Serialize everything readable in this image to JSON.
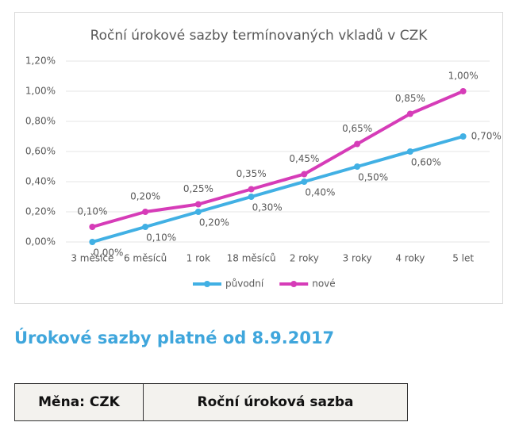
{
  "chart_data": {
    "type": "line",
    "title": "Roční úrokové sazby termínovaných vkladů v CZK",
    "categories": [
      "3 měsíce",
      "6 měsíců",
      "1 rok",
      "18 měsíců",
      "2 roky",
      "3 roky",
      "4 roky",
      "5 let"
    ],
    "series": [
      {
        "name": "původní",
        "color": "#41b0e4",
        "values": [
          0,
          0.1,
          0.2,
          0.3,
          0.4,
          0.5,
          0.6,
          0.7
        ],
        "value_labels": [
          "0,00%",
          "0,10%",
          "0,20%",
          "0,30%",
          "0,40%",
          "0,50%",
          "0,60%",
          "0,70%"
        ]
      },
      {
        "name": "nové",
        "color": "#d63cb8",
        "values": [
          0.1,
          0.2,
          0.25,
          0.35,
          0.45,
          0.65,
          0.85,
          1.0
        ],
        "value_labels": [
          "0,10%",
          "0,20%",
          "0,25%",
          "0,35%",
          "0,45%",
          "0,65%",
          "0,85%",
          "1,00%"
        ]
      }
    ],
    "ylim": [
      0,
      1.2
    ],
    "yticks": [
      {
        "value": 0,
        "label": "0,00%"
      },
      {
        "value": 0.2,
        "label": "0,20%"
      },
      {
        "value": 0.4,
        "label": "0,40%"
      },
      {
        "value": 0.6,
        "label": "0,60%"
      },
      {
        "value": 0.8,
        "label": "0,80%"
      },
      {
        "value": 1.0,
        "label": "1,00%"
      },
      {
        "value": 1.2,
        "label": "1,20%"
      }
    ],
    "grid": true,
    "legend": "bottom"
  },
  "heading": "Úrokové sazby platné od 8.9.2017",
  "table": {
    "header": [
      "Měna: CZK",
      "Roční úroková sazba"
    ]
  }
}
